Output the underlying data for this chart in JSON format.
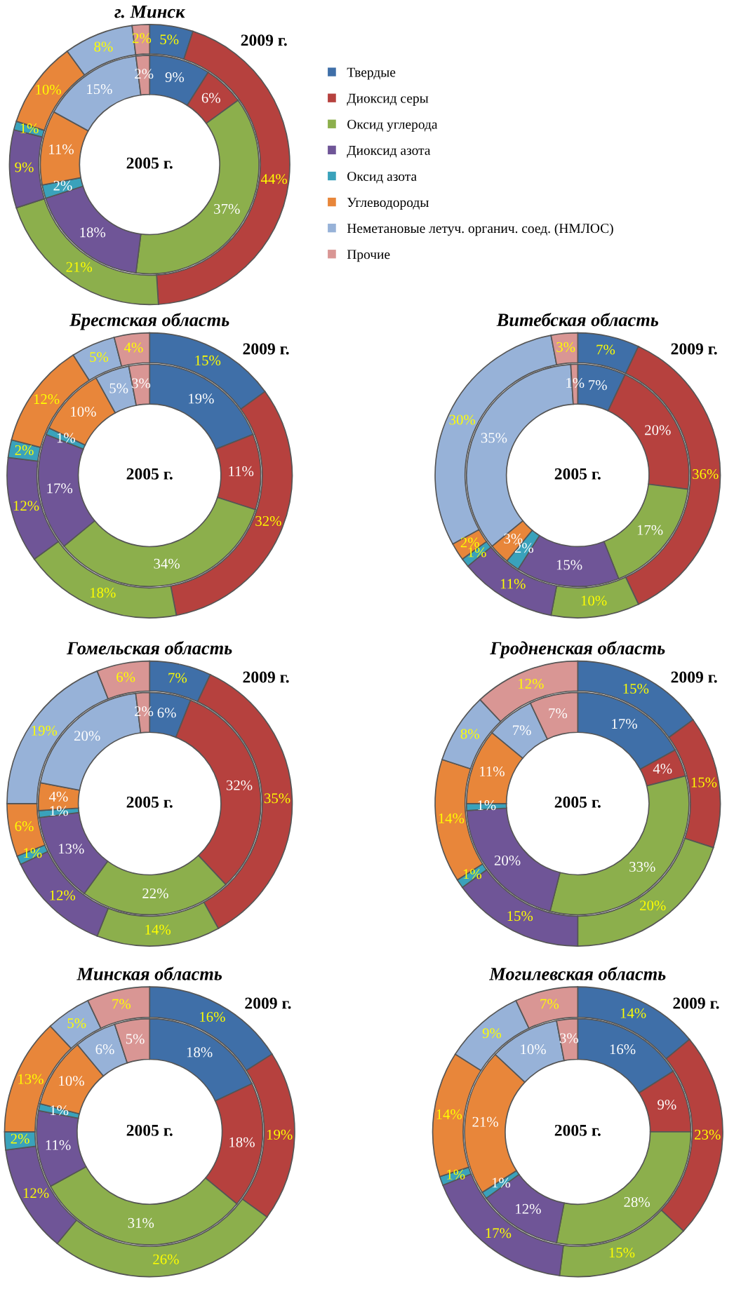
{
  "chart_data": [
    {
      "type": "donut",
      "title": "г. Минск",
      "legend": "right",
      "categories": [
        "Твердые",
        "Диоксид серы",
        "Оксид углерода",
        "Диоксид азота",
        "Оксид азота",
        "Углеводороды",
        "Неметановые летуч. органич. соед. (НМЛОС)",
        "Прочие"
      ],
      "colors": [
        "#3f6fa8",
        "#b6413e",
        "#8caf4c",
        "#6f5597",
        "#3aa2bb",
        "#e8863a",
        "#97b2d8",
        "#d99694"
      ],
      "series": [
        {
          "name": "2005 г.",
          "values": [
            9,
            6,
            37,
            18,
            2,
            11,
            15,
            2
          ],
          "value_labels": [
            "9%",
            "6%",
            "37%",
            "18%",
            "2%",
            "11%",
            "15%",
            "2%"
          ]
        },
        {
          "name": "2009 г.",
          "values": [
            5,
            44,
            21,
            9,
            1,
            10,
            8,
            2
          ],
          "value_labels": [
            "5%",
            "44%",
            "21%",
            "9%",
            "1%",
            "10%",
            "8%",
            "2%"
          ]
        }
      ]
    },
    {
      "type": "donut",
      "title": "Брестская область",
      "categories": [
        null,
        null,
        null,
        null,
        null,
        null,
        null,
        null
      ],
      "colors": [
        "#3f6fa8",
        "#b6413e",
        "#8caf4c",
        "#6f5597",
        "#3aa2bb",
        "#e8863a",
        "#97b2d8",
        "#d99694"
      ],
      "series": [
        {
          "name": "2005 г.",
          "values": [
            19,
            11,
            34,
            17,
            1,
            10,
            5,
            3
          ],
          "value_labels": [
            "19%",
            "11%",
            "34%",
            "17%",
            "1%",
            "10%",
            "5%",
            "3%"
          ]
        },
        {
          "name": "2009 г.",
          "values": [
            15,
            32,
            18,
            12,
            2,
            12,
            5,
            4
          ],
          "value_labels": [
            "15%",
            "32%",
            "18%",
            "12%",
            "2%",
            "12%",
            "5%",
            "4%"
          ]
        }
      ]
    },
    {
      "type": "donut",
      "title": "Витебская область",
      "categories": [
        null,
        null,
        null,
        null,
        null,
        null,
        null,
        null
      ],
      "colors": [
        "#3f6fa8",
        "#b6413e",
        "#8caf4c",
        "#6f5597",
        "#3aa2bb",
        "#e8863a",
        "#97b2d8",
        "#d99694"
      ],
      "series": [
        {
          "name": "2005 г.",
          "values": [
            7,
            20,
            17,
            15,
            2,
            3,
            35,
            1
          ],
          "value_labels": [
            "7%",
            "20%",
            "17%",
            "15%",
            "2%",
            "3%",
            "35%",
            "1%"
          ]
        },
        {
          "name": "2009 г.",
          "values": [
            7,
            36,
            10,
            11,
            1,
            2,
            30,
            3
          ],
          "value_labels": [
            "7%",
            "36%",
            "10%",
            "11%",
            "1%",
            "2%",
            "30%",
            "3%"
          ]
        }
      ]
    },
    {
      "type": "donut",
      "title": "Гомельская область",
      "categories": [
        null,
        null,
        null,
        null,
        null,
        null,
        null,
        null
      ],
      "colors": [
        "#3f6fa8",
        "#b6413e",
        "#8caf4c",
        "#6f5597",
        "#3aa2bb",
        "#e8863a",
        "#97b2d8",
        "#d99694"
      ],
      "series": [
        {
          "name": "2005 г.",
          "values": [
            6,
            32,
            22,
            13,
            1,
            4,
            20,
            2
          ],
          "value_labels": [
            "6%",
            "32%",
            "22%",
            "13%",
            "1%",
            "4%",
            "20%",
            "2%"
          ]
        },
        {
          "name": "2009 г.",
          "values": [
            7,
            35,
            14,
            12,
            1,
            6,
            19,
            6
          ],
          "value_labels": [
            "7%",
            "35%",
            "14%",
            "12%",
            "1%",
            "6%",
            "19%",
            "6%"
          ]
        }
      ]
    },
    {
      "type": "donut",
      "title": "Гродненская область",
      "categories": [
        null,
        null,
        null,
        null,
        null,
        null,
        null,
        null
      ],
      "colors": [
        "#3f6fa8",
        "#b6413e",
        "#8caf4c",
        "#6f5597",
        "#3aa2bb",
        "#e8863a",
        "#97b2d8",
        "#d99694"
      ],
      "series": [
        {
          "name": "2005 г.",
          "values": [
            17,
            4,
            33,
            20,
            1,
            11,
            7,
            7
          ],
          "value_labels": [
            "17%",
            "4%",
            "33%",
            "20%",
            "1%",
            "11%",
            "7%",
            "7%"
          ]
        },
        {
          "name": "2009 г.",
          "values": [
            15,
            15,
            20,
            15,
            1,
            14,
            8,
            12
          ],
          "value_labels": [
            "15%",
            "15%",
            "20%",
            "15%",
            "1%",
            "14%",
            "8%",
            "12%"
          ]
        }
      ]
    },
    {
      "type": "donut",
      "title": "Минская область",
      "categories": [
        null,
        null,
        null,
        null,
        null,
        null,
        null,
        null
      ],
      "colors": [
        "#3f6fa8",
        "#b6413e",
        "#8caf4c",
        "#6f5597",
        "#3aa2bb",
        "#e8863a",
        "#97b2d8",
        "#d99694"
      ],
      "series": [
        {
          "name": "2005 г.",
          "values": [
            18,
            18,
            31,
            11,
            1,
            10,
            6,
            5
          ],
          "value_labels": [
            "18%",
            "18%",
            "31%",
            "11%",
            "1%",
            "10%",
            "6%",
            "5%"
          ]
        },
        {
          "name": "2009 г.",
          "values": [
            16,
            19,
            26,
            12,
            2,
            13,
            5,
            7
          ],
          "value_labels": [
            "16%",
            "19%",
            "26%",
            "12%",
            "2%",
            "13%",
            "5%",
            "7%"
          ]
        }
      ]
    },
    {
      "type": "donut",
      "title": "Могилевская область",
      "categories": [
        null,
        null,
        null,
        null,
        null,
        null,
        null,
        null
      ],
      "colors": [
        "#3f6fa8",
        "#b6413e",
        "#8caf4c",
        "#6f5597",
        "#3aa2bb",
        "#e8863a",
        "#97b2d8",
        "#d99694"
      ],
      "series": [
        {
          "name": "2005 г.",
          "values": [
            16,
            9,
            28,
            12,
            1,
            21,
            10,
            3
          ],
          "value_labels": [
            "16%",
            "9%",
            "28%",
            "12%",
            "1%",
            "21%",
            "10%",
            "3%"
          ]
        },
        {
          "name": "2009 г.",
          "values": [
            14,
            23,
            15,
            17,
            1,
            14,
            9,
            7
          ],
          "value_labels": [
            "14%",
            "23%",
            "15%",
            "17%",
            "1%",
            "14%",
            "9%",
            "7%"
          ]
        }
      ]
    }
  ]
}
